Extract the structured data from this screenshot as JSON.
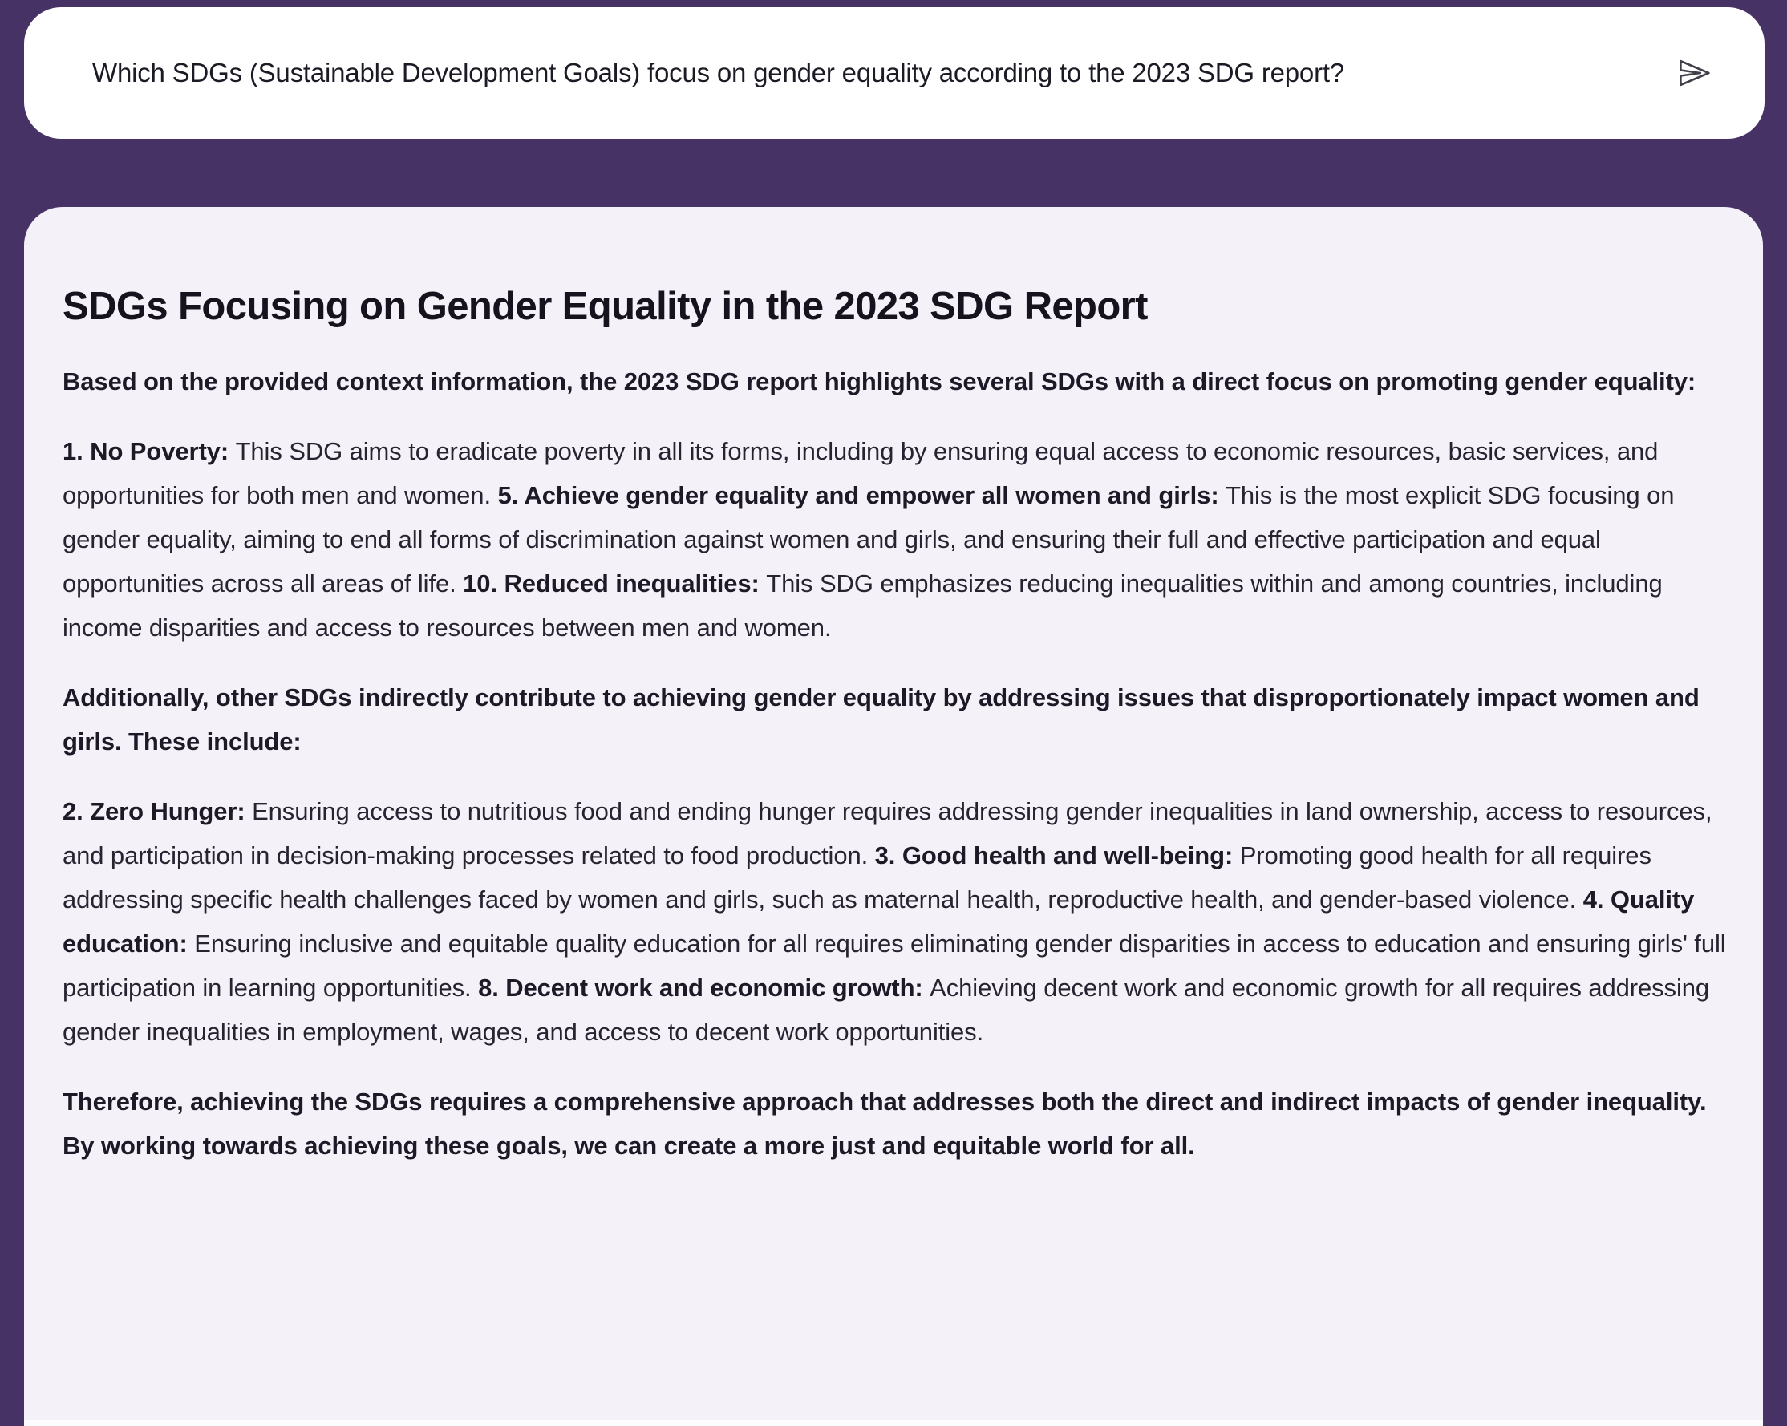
{
  "theme": {
    "background": "#473266",
    "card_bg": "#f4f2f8",
    "bar_bg": "#ffffff",
    "text_body": "#272331",
    "text_strong": "#1d1927",
    "text_heading": "#16121e",
    "text_question": "#1c1a24",
    "icon_stroke": "#413f48"
  },
  "query_bar": {
    "question": "Which SDGs (Sustainable Development Goals) focus on gender equality according to the 2023 SDG report?",
    "send_icon": "paper-plane-send-icon"
  },
  "answer": {
    "title": "SDGs Focusing on Gender Equality in the 2023 SDG Report",
    "paragraphs": [
      {
        "segments": [
          {
            "bold": true,
            "text": "Based on the provided context information, the 2023 SDG report highlights several SDGs with a direct focus on promoting gender equality:"
          }
        ]
      },
      {
        "segments": [
          {
            "bold": true,
            "text": "1. No Poverty: "
          },
          {
            "bold": false,
            "text": "This SDG aims to eradicate poverty in all its forms, including by ensuring equal access to economic resources, basic services, and opportunities for both men and women. "
          },
          {
            "bold": true,
            "text": "5. Achieve gender equality and empower all women and girls: "
          },
          {
            "bold": false,
            "text": "This is the most explicit SDG focusing on gender equality, aiming to end all forms of discrimination against women and girls, and ensuring their full and effective participation and equal opportunities across all areas of life. "
          },
          {
            "bold": true,
            "text": "10. Reduced inequalities: "
          },
          {
            "bold": false,
            "text": "This SDG emphasizes reducing inequalities within and among countries, including income disparities and access to resources between men and women."
          }
        ]
      },
      {
        "segments": [
          {
            "bold": true,
            "text": "Additionally, other SDGs indirectly contribute to achieving gender equality by addressing issues that disproportionately impact women and girls. These include:"
          }
        ]
      },
      {
        "segments": [
          {
            "bold": true,
            "text": "2. Zero Hunger: "
          },
          {
            "bold": false,
            "text": "Ensuring access to nutritious food and ending hunger requires addressing gender inequalities in land ownership, access to resources, and participation in decision-making processes related to food production. "
          },
          {
            "bold": true,
            "text": "3. Good health and well-being: "
          },
          {
            "bold": false,
            "text": "Promoting good health for all requires addressing specific health challenges faced by women and girls, such as maternal health, reproductive health, and gender-based violence. "
          },
          {
            "bold": true,
            "text": "4. Quality education: "
          },
          {
            "bold": false,
            "text": "Ensuring inclusive and equitable quality education for all requires eliminating gender disparities in access to education and ensuring girls' full participation in learning opportunities. "
          },
          {
            "bold": true,
            "text": "8. Decent work and economic growth: "
          },
          {
            "bold": false,
            "text": "Achieving decent work and economic growth for all requires addressing gender inequalities in employment, wages, and access to decent work opportunities."
          }
        ]
      },
      {
        "segments": [
          {
            "bold": true,
            "text": "Therefore, achieving the SDGs requires a comprehensive approach that addresses both the direct and indirect impacts of gender inequality. By working towards achieving these goals, we can create a more just and equitable world for all."
          }
        ]
      }
    ]
  }
}
